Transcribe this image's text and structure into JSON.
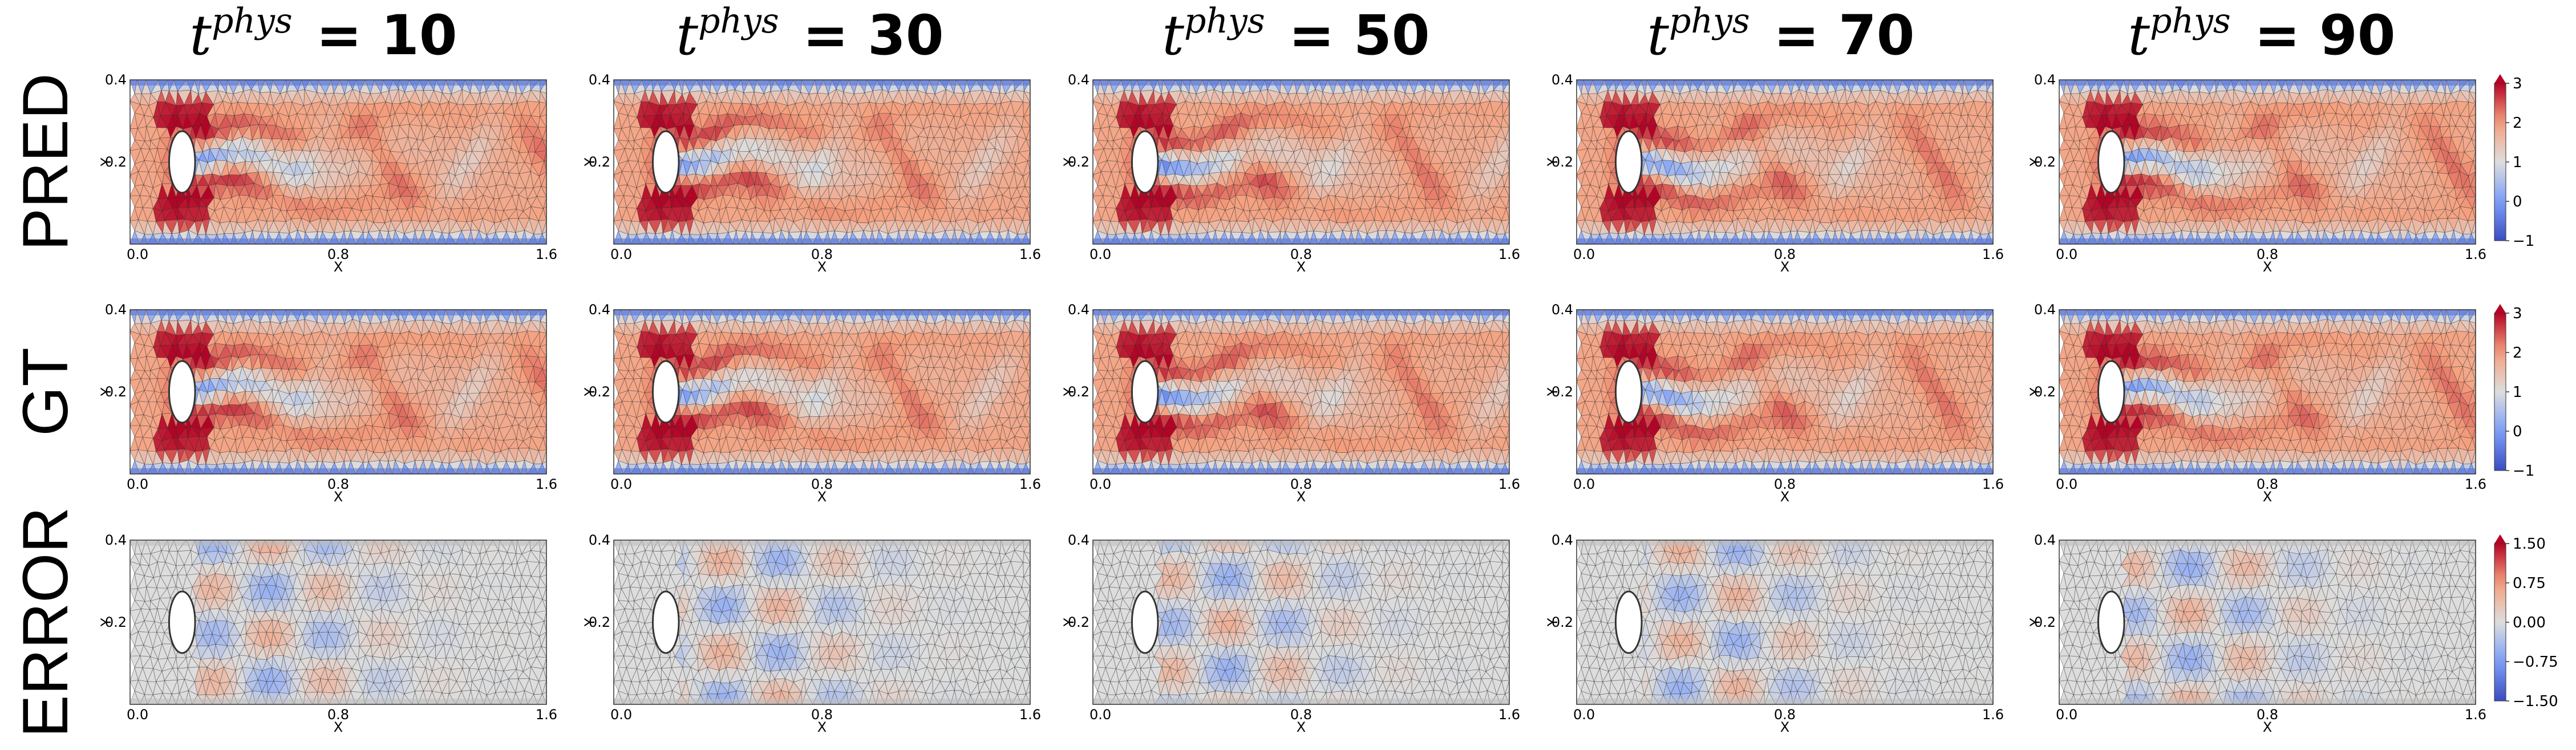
{
  "chart_data": {
    "type": "heatmap",
    "columns": [
      {
        "label": "= 10",
        "t_prefix": "t",
        "t_sup": "phys"
      },
      {
        "label": "= 30",
        "t_prefix": "t",
        "t_sup": "phys"
      },
      {
        "label": "= 50",
        "t_prefix": "t",
        "t_sup": "phys"
      },
      {
        "label": "= 70",
        "t_prefix": "t",
        "t_sup": "phys"
      },
      {
        "label": "= 90",
        "t_prefix": "t",
        "t_sup": "phys"
      }
    ],
    "t_values": [
      10,
      30,
      50,
      70,
      90
    ],
    "rows": [
      {
        "label": "PRED",
        "colorbar_ticks": [
          "3",
          "2",
          "1",
          "0",
          "−1"
        ],
        "range": [
          -1,
          3
        ],
        "kind": "field"
      },
      {
        "label": "GT",
        "colorbar_ticks": [
          "3",
          "2",
          "1",
          "0",
          "−1"
        ],
        "range": [
          -1,
          3
        ],
        "kind": "field"
      },
      {
        "label": "ERROR",
        "colorbar_ticks": [
          "1.50",
          "0.75",
          "0.00",
          "−0.75",
          "−1.50"
        ],
        "range": [
          -1.5,
          1.5
        ],
        "kind": "error"
      }
    ],
    "xlabel": "X",
    "ylabel": "Y",
    "xticks": [
      "0.0",
      "0.8",
      "1.6"
    ],
    "xticks_cut": [
      "0.0",
      "0.8",
      "1.6"
    ],
    "yticks": [
      "0.4",
      "0.2"
    ],
    "xlim": [
      0.0,
      1.6
    ],
    "ylim": [
      0.0,
      0.4
    ],
    "obstacle": {
      "shape": "ellipse",
      "cx": 0.2,
      "cy": 0.2,
      "rx": 0.05,
      "ry": 0.075
    },
    "colormap": "coolwarm",
    "mesh": "triangular"
  }
}
